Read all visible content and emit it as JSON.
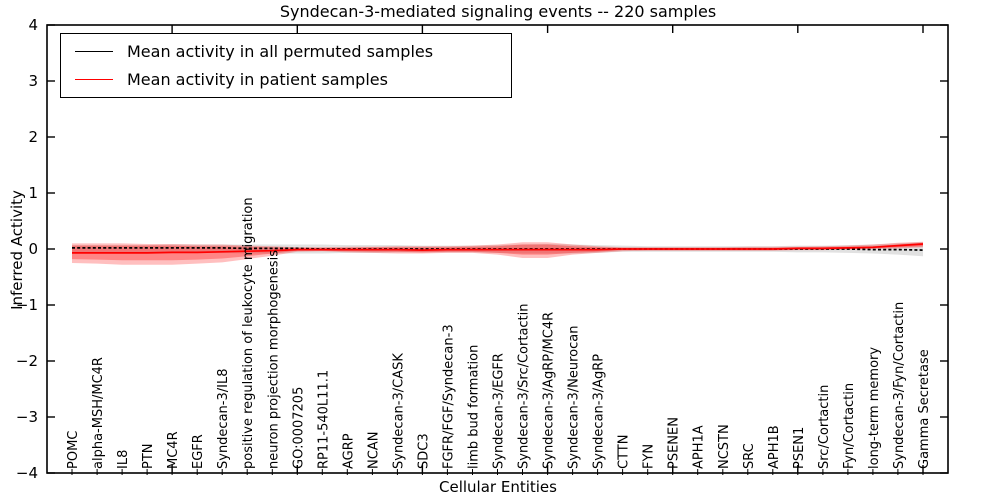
{
  "figure": {
    "title": "Syndecan-3-mediated signaling events -- 220 samples",
    "xlabel": "Cellular Entities",
    "ylabel": "Inferred Activity"
  },
  "legend": {
    "entries": [
      {
        "label": "Mean activity in all permuted samples",
        "color": "#000000"
      },
      {
        "label": "Mean activity in patient samples",
        "color": "#ff0000"
      }
    ]
  },
  "chart_data": {
    "type": "line",
    "title": "Syndecan-3-mediated signaling events -- 220 samples",
    "xlabel": "Cellular Entities",
    "ylabel": "Inferred Activity",
    "ylim": [
      -4,
      4
    ],
    "yticks": [
      -4,
      -3,
      -2,
      -1,
      0,
      1,
      2,
      3,
      4
    ],
    "xlim": [
      0,
      36
    ],
    "xticks": [
      5,
      10,
      15,
      20,
      25,
      30,
      35
    ],
    "grid": false,
    "legend_position": "upper left",
    "categories": [
      "POMC",
      "alpha-MSH/MC4R",
      "IL8",
      "PTN",
      "MC4R",
      "EGFR",
      "Syndecan-3/IL8",
      "positive regulation of leukocyte migration",
      "neuron projection morphogenesis",
      "GO:0007205",
      "RP11-540L11.1",
      "AGRP",
      "NCAN",
      "Syndecan-3/CASK",
      "SDC3",
      "FGFR/FGF/Syndecan-3",
      "limb bud formation",
      "Syndecan-3/EGFR",
      "Syndecan-3/Src/Cortactin",
      "Syndecan-3/AgRP/MC4R",
      "Syndecan-3/Neurocan",
      "Syndecan-3/AgRP",
      "CTTN",
      "FYN",
      "PSENEN",
      "APH1A",
      "NCSTN",
      "SRC",
      "APH1B",
      "PSEN1",
      "Src/Cortactin",
      "Fyn/Cortactin",
      "long-term memory",
      "Syndecan-3/Fyn/Cortactin",
      "Gamma Secretase"
    ],
    "series": [
      {
        "name": "Mean activity in all permuted samples",
        "color": "#000000",
        "style": "dashed",
        "values": [
          0.02,
          0.02,
          0.02,
          0.02,
          0.02,
          0.02,
          0.02,
          0.01,
          0.01,
          0.01,
          0.0,
          0.0,
          0.0,
          0.0,
          0.0,
          0.0,
          0.0,
          0.0,
          0.0,
          0.0,
          0.0,
          0.0,
          0.0,
          0.0,
          0.0,
          0.0,
          0.0,
          0.0,
          0.0,
          0.0,
          0.0,
          0.0,
          -0.01,
          -0.01,
          -0.02
        ]
      },
      {
        "name": "Mean activity in patient samples",
        "color": "#ff0000",
        "style": "solid",
        "values": [
          -0.07,
          -0.07,
          -0.07,
          -0.07,
          -0.06,
          -0.06,
          -0.05,
          -0.04,
          -0.03,
          -0.01,
          -0.01,
          -0.01,
          -0.01,
          -0.01,
          -0.02,
          -0.01,
          -0.01,
          -0.01,
          -0.01,
          -0.01,
          -0.01,
          -0.01,
          0.0,
          0.0,
          0.0,
          0.0,
          0.0,
          0.0,
          0.0,
          0.01,
          0.01,
          0.02,
          0.03,
          0.06,
          0.09
        ]
      }
    ],
    "bands": [
      {
        "name": "permuted-samples-band",
        "fill": "#787878",
        "opacity": 0.22,
        "lower": [
          -0.06,
          -0.06,
          -0.06,
          -0.07,
          -0.07,
          -0.07,
          -0.07,
          -0.08,
          -0.08,
          -0.08,
          -0.08,
          -0.07,
          -0.07,
          -0.06,
          -0.06,
          -0.06,
          -0.06,
          -0.07,
          -0.08,
          -0.08,
          -0.08,
          -0.07,
          -0.05,
          -0.05,
          -0.05,
          -0.05,
          -0.05,
          -0.05,
          -0.05,
          -0.06,
          -0.06,
          -0.07,
          -0.08,
          -0.1,
          -0.13
        ],
        "upper": [
          0.07,
          0.07,
          0.07,
          0.07,
          0.08,
          0.08,
          0.08,
          0.08,
          0.08,
          0.08,
          0.08,
          0.07,
          0.07,
          0.07,
          0.06,
          0.06,
          0.06,
          0.07,
          0.08,
          0.09,
          0.08,
          0.07,
          0.06,
          0.05,
          0.05,
          0.05,
          0.05,
          0.05,
          0.05,
          0.06,
          0.06,
          0.07,
          0.08,
          0.1,
          0.12
        ]
      },
      {
        "name": "patient-samples-band-outer",
        "fill": "#ff0000",
        "opacity": 0.25,
        "lower": [
          -0.25,
          -0.26,
          -0.28,
          -0.28,
          -0.28,
          -0.26,
          -0.24,
          -0.18,
          -0.12,
          -0.05,
          -0.04,
          -0.06,
          -0.07,
          -0.08,
          -0.08,
          -0.07,
          -0.07,
          -0.1,
          -0.16,
          -0.16,
          -0.1,
          -0.07,
          -0.04,
          -0.03,
          -0.03,
          -0.03,
          -0.03,
          -0.03,
          -0.03,
          -0.02,
          -0.02,
          -0.01,
          0.0,
          0.01,
          0.03
        ],
        "upper": [
          0.1,
          0.1,
          0.1,
          0.09,
          0.09,
          0.08,
          0.08,
          0.06,
          0.05,
          0.03,
          0.03,
          0.04,
          0.04,
          0.05,
          0.05,
          0.05,
          0.06,
          0.08,
          0.12,
          0.12,
          0.08,
          0.05,
          0.03,
          0.03,
          0.03,
          0.03,
          0.03,
          0.04,
          0.04,
          0.04,
          0.05,
          0.06,
          0.08,
          0.11,
          0.13
        ]
      },
      {
        "name": "patient-samples-band-inner",
        "fill": "#ff0000",
        "opacity": 0.3,
        "lower": [
          -0.18,
          -0.19,
          -0.2,
          -0.2,
          -0.2,
          -0.19,
          -0.17,
          -0.13,
          -0.08,
          -0.03,
          -0.03,
          -0.04,
          -0.05,
          -0.05,
          -0.06,
          -0.05,
          -0.05,
          -0.07,
          -0.1,
          -0.1,
          -0.07,
          -0.05,
          -0.02,
          -0.02,
          -0.02,
          -0.02,
          -0.02,
          -0.02,
          -0.02,
          -0.01,
          -0.01,
          0.0,
          0.01,
          0.03,
          0.05
        ],
        "upper": [
          0.06,
          0.06,
          0.06,
          0.06,
          0.06,
          0.05,
          0.05,
          0.04,
          0.03,
          0.02,
          0.02,
          0.02,
          0.03,
          0.03,
          0.03,
          0.03,
          0.04,
          0.05,
          0.08,
          0.08,
          0.05,
          0.03,
          0.02,
          0.02,
          0.02,
          0.02,
          0.02,
          0.02,
          0.02,
          0.03,
          0.03,
          0.04,
          0.05,
          0.08,
          0.11
        ]
      }
    ]
  }
}
